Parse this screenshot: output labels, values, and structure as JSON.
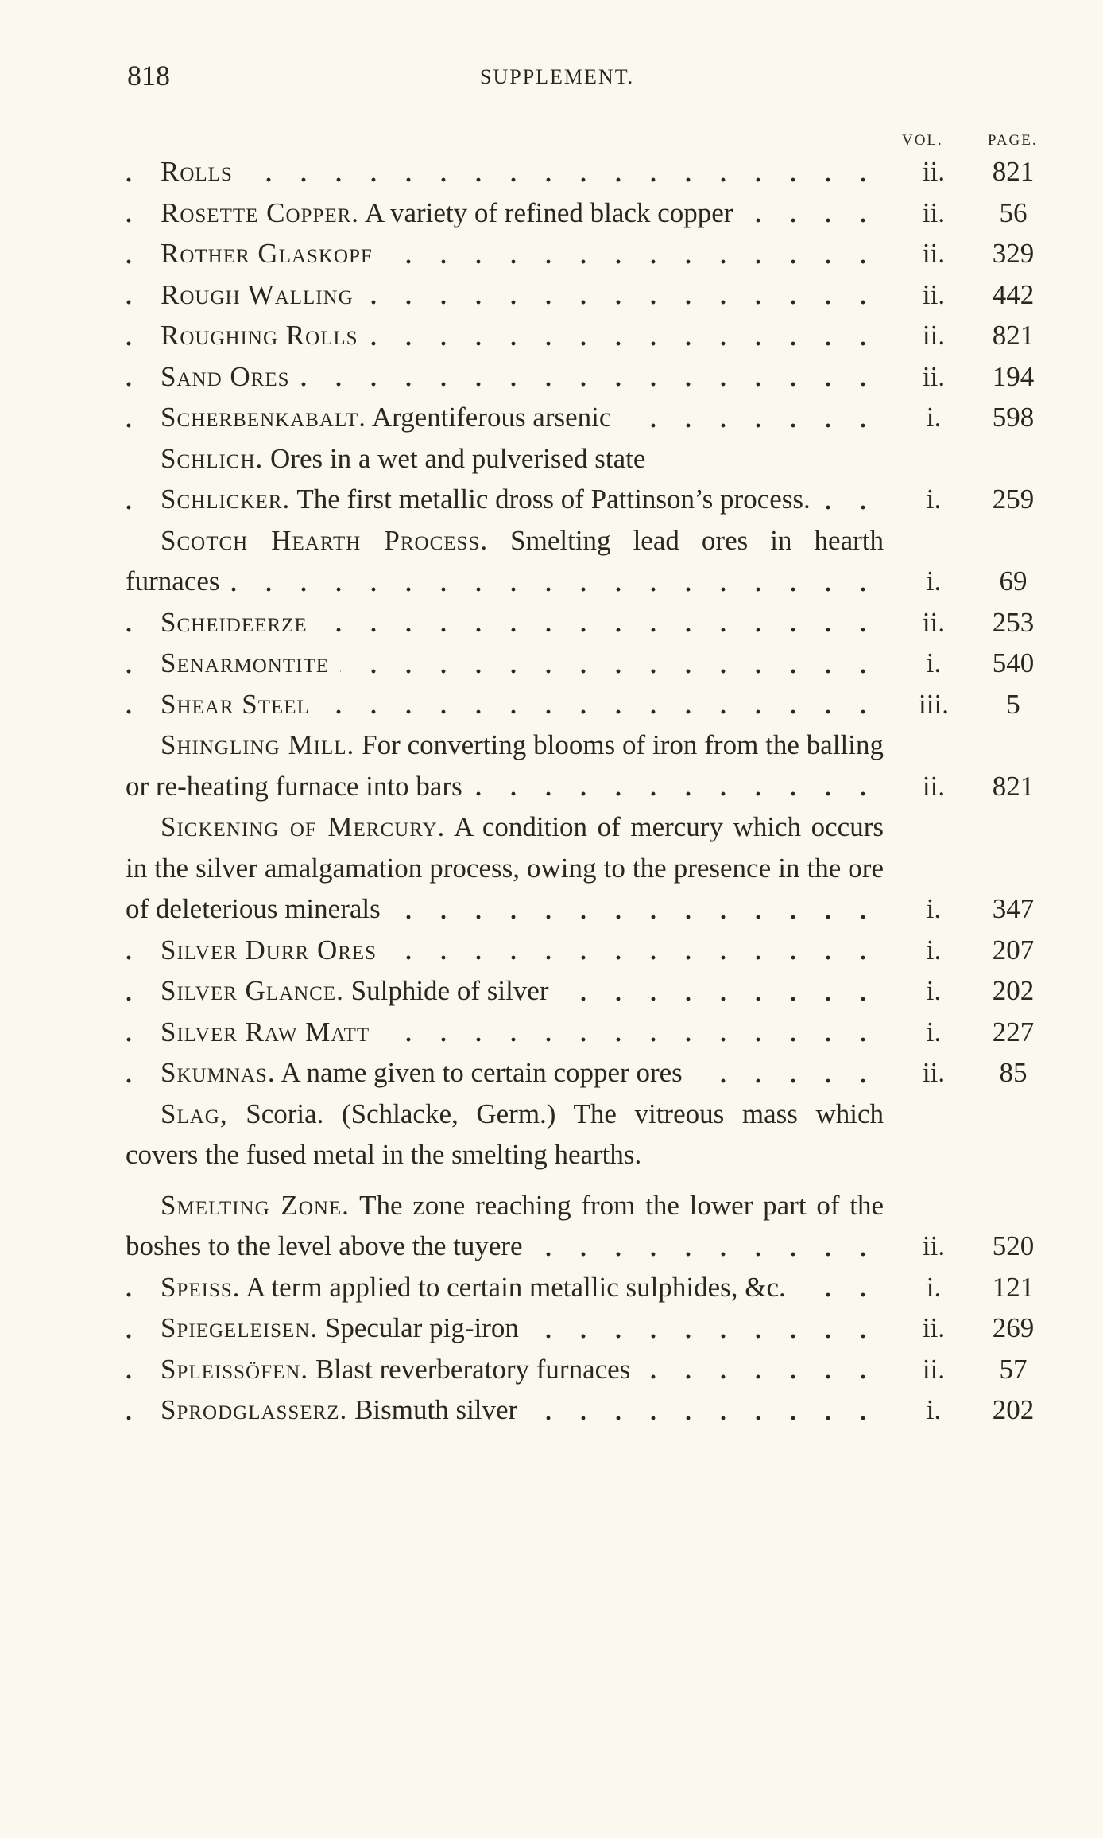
{
  "header": {
    "page_number": "818",
    "title": "SUPPLEMENT."
  },
  "columns": {
    "vol": "VOL.",
    "page": "PAGE."
  },
  "entries": [
    {
      "term": "Rolls",
      "vol": "ii.",
      "page": "821"
    },
    {
      "term": "Rosette Copper.",
      "text": "A variety of refined black copper",
      "vol": "ii.",
      "page": "56"
    },
    {
      "term": "Rother Glaskopf",
      "vol": "ii.",
      "page": "329"
    },
    {
      "term": "Rough Walling",
      "vol": "ii.",
      "page": "442"
    },
    {
      "term": "Roughing Rolls",
      "vol": "ii.",
      "page": "821"
    },
    {
      "term": "Sand Ores",
      "vol": "ii.",
      "page": "194"
    },
    {
      "term": "Scherbenkabalt.",
      "text": "Argentiferous arsenic",
      "vol": "i.",
      "page": "598"
    },
    {
      "term": "Schlich.",
      "text": "Ores in a wet and pulverised state"
    },
    {
      "term": "Schlicker.",
      "text": "The first metallic dross of Pattinson’s process.",
      "vol": "i.",
      "page": "259"
    },
    {
      "term": "Scotch Hearth Process.",
      "text": "Smelting lead ores in hearth furnaces",
      "vol": "i.",
      "page": "69"
    },
    {
      "term": "Scheideerze",
      "vol": "ii.",
      "page": "253"
    },
    {
      "term": "Senarmontite",
      "vol": "i.",
      "page": "540"
    },
    {
      "term": "Shear Steel",
      "vol": "iii.",
      "page": "5"
    },
    {
      "term": "Shingling Mill.",
      "text": "For converting blooms of iron from the balling or re-heating furnace into bars",
      "vol": "ii.",
      "page": "821"
    },
    {
      "term": "Sickening of Mercury.",
      "text": "A condition of mercury which occurs in the silver amalgamation process, owing to the presence in the ore of deleterious minerals",
      "vol": "i.",
      "page": "347"
    },
    {
      "term": "Silver Durr Ores",
      "vol": "i.",
      "page": "207"
    },
    {
      "term": "Silver Glance.",
      "text": "Sulphide of silver",
      "vol": "i.",
      "page": "202"
    },
    {
      "term": "Silver Raw Matt",
      "vol": "i.",
      "page": "227"
    },
    {
      "term": "Skumnas.",
      "text": "A name given to certain copper ores",
      "vol": "ii.",
      "page": "85"
    },
    {
      "term": "Slag,",
      "text": "Scoria. (Schlacke, Germ.) The vitreous mass which covers the fused metal in the smelting hearths."
    },
    {
      "term": "Smelting Zone.",
      "text": "The zone reaching from the lower part of the boshes to the level above the tuyere",
      "vol": "ii.",
      "page": "520"
    },
    {
      "term": "Speiss.",
      "text": "A term applied to certain metallic sulphides, &c.",
      "vol": "i.",
      "page": "121"
    },
    {
      "term": "Spiegeleisen.",
      "text": "Specular pig-iron",
      "vol": "ii.",
      "page": "269"
    },
    {
      "term": "Spleissöfen.",
      "text": "Blast reverberatory furnaces",
      "vol": "ii.",
      "page": "57"
    },
    {
      "term": "Sprodglasserz.",
      "text": "Bismuth silver",
      "vol": "i.",
      "page": "202"
    }
  ]
}
